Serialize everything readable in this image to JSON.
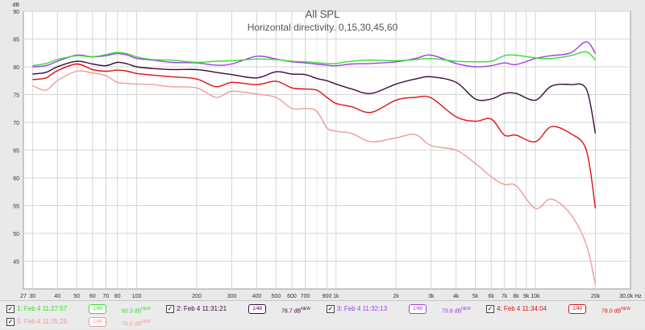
{
  "chart_data": {
    "type": "line",
    "title": "All SPL",
    "subtitle": "Horizontal directivity. 0,15,30,45,60",
    "ylabel": "dB",
    "xunit": "Hz",
    "xscale": "log",
    "xlim": [
      27,
      30000
    ],
    "ylim": [
      40,
      90
    ],
    "grid": true,
    "x_ticks": [
      {
        "v": 27,
        "label": "27"
      },
      {
        "v": 30,
        "label": "30"
      },
      {
        "v": 40,
        "label": "40"
      },
      {
        "v": 50,
        "label": "50"
      },
      {
        "v": 60,
        "label": "60"
      },
      {
        "v": 70,
        "label": "70"
      },
      {
        "v": 80,
        "label": "80"
      },
      {
        "v": 100,
        "label": "100"
      },
      {
        "v": 200,
        "label": "200"
      },
      {
        "v": 300,
        "label": "300"
      },
      {
        "v": 400,
        "label": "400"
      },
      {
        "v": 500,
        "label": "500"
      },
      {
        "v": 600,
        "label": "600"
      },
      {
        "v": 700,
        "label": "700"
      },
      {
        "v": 900,
        "label": "900"
      },
      {
        "v": 1000,
        "label": "1k"
      },
      {
        "v": 2000,
        "label": "2k"
      },
      {
        "v": 3000,
        "label": "3k"
      },
      {
        "v": 4000,
        "label": "4k"
      },
      {
        "v": 5000,
        "label": "5k"
      },
      {
        "v": 6000,
        "label": "6k"
      },
      {
        "v": 7000,
        "label": "7k"
      },
      {
        "v": 8000,
        "label": "8k"
      },
      {
        "v": 9000,
        "label": "9k"
      },
      {
        "v": 10000,
        "label": "10k"
      },
      {
        "v": 20000,
        "label": "20k"
      },
      {
        "v": 30000,
        "label": "30.0k Hz"
      }
    ],
    "y_ticks": [
      45,
      50,
      55,
      60,
      65,
      70,
      75,
      80,
      85,
      90
    ],
    "series": [
      {
        "name": "1: Feb 4 11:27:57",
        "color": "#33dd33",
        "value_label": "80.3 dB",
        "badge": "NEW",
        "x": [
          30,
          35,
          40,
          50,
          60,
          70,
          80,
          90,
          100,
          120,
          150,
          200,
          250,
          300,
          400,
          500,
          600,
          700,
          900,
          1000,
          1200,
          1500,
          2000,
          2500,
          3000,
          4000,
          5000,
          6000,
          7000,
          8000,
          10000,
          12000,
          15000,
          18000,
          20000
        ],
        "y": [
          80.2,
          80.6,
          81.3,
          82.0,
          81.8,
          82.2,
          82.6,
          82.3,
          81.8,
          81.3,
          81.2,
          80.8,
          81.0,
          81.1,
          81.4,
          81.3,
          81.0,
          80.9,
          80.6,
          80.6,
          81.0,
          81.2,
          81.1,
          81.3,
          81.5,
          81.0,
          80.9,
          81.0,
          82.0,
          82.1,
          81.6,
          81.5,
          82.0,
          82.7,
          81.2
        ]
      },
      {
        "name": "2: Feb 4 11:31:21",
        "color": "#3a0c3a",
        "value_label": "78.7 dB",
        "badge": "NEW",
        "x": [
          30,
          35,
          40,
          50,
          60,
          70,
          80,
          90,
          100,
          120,
          150,
          200,
          250,
          300,
          400,
          500,
          600,
          700,
          800,
          900,
          1000,
          1200,
          1500,
          2000,
          2500,
          3000,
          4000,
          5000,
          6000,
          7000,
          8000,
          10000,
          12000,
          15000,
          18000,
          20000
        ],
        "y": [
          78.7,
          79.0,
          80.0,
          81.0,
          80.5,
          80.2,
          80.8,
          80.5,
          80.0,
          79.7,
          79.5,
          79.5,
          79.0,
          78.6,
          78.0,
          79.1,
          78.7,
          78.6,
          77.9,
          77.5,
          76.9,
          76.0,
          75.2,
          76.9,
          77.8,
          78.2,
          77.2,
          74.2,
          74.2,
          75.2,
          75.2,
          74.0,
          76.5,
          76.8,
          76.0,
          68.0
        ]
      },
      {
        "name": "3: Feb 4 11:32:13",
        "color": "#9f3fe8",
        "value_label": "79.8 dB",
        "badge": "NEW",
        "x": [
          30,
          35,
          40,
          50,
          60,
          70,
          80,
          90,
          100,
          120,
          150,
          200,
          250,
          300,
          400,
          500,
          600,
          700,
          900,
          1000,
          1200,
          1500,
          2000,
          2500,
          3000,
          4000,
          5000,
          6000,
          7000,
          8000,
          10000,
          12000,
          15000,
          18000,
          20000
        ],
        "y": [
          80.0,
          80.2,
          81.0,
          82.1,
          81.8,
          82.0,
          82.4,
          82.1,
          81.5,
          81.2,
          80.8,
          80.7,
          80.3,
          80.5,
          81.9,
          81.4,
          80.9,
          80.7,
          80.3,
          80.2,
          80.5,
          80.6,
          80.9,
          81.5,
          82.1,
          80.6,
          80.0,
          80.2,
          80.7,
          80.4,
          81.5,
          82.0,
          82.5,
          84.5,
          82.4
        ]
      },
      {
        "name": "4: Feb 4 11:34:04",
        "color": "#e01010",
        "value_label": "78.0 dB",
        "badge": "NEW",
        "x": [
          30,
          35,
          40,
          50,
          60,
          70,
          80,
          90,
          100,
          120,
          150,
          200,
          250,
          300,
          400,
          500,
          600,
          700,
          800,
          900,
          1000,
          1200,
          1500,
          2000,
          2500,
          3000,
          4000,
          5000,
          6000,
          7000,
          8000,
          10000,
          12000,
          15000,
          18000,
          20000
        ],
        "y": [
          77.7,
          78.0,
          79.3,
          80.5,
          79.5,
          79.2,
          79.4,
          79.2,
          78.8,
          78.5,
          78.2,
          77.8,
          76.4,
          77.2,
          76.8,
          77.4,
          76.2,
          76.0,
          75.8,
          74.5,
          73.4,
          72.8,
          71.8,
          74.0,
          74.5,
          74.4,
          71.0,
          70.2,
          70.6,
          67.7,
          67.7,
          66.5,
          69.2,
          68.0,
          65.0,
          54.5
        ]
      },
      {
        "name": "5: Feb 4 11:35:29",
        "color": "#f09a9a",
        "value_label": "76.6 dB",
        "badge": "NEW",
        "x": [
          30,
          35,
          40,
          50,
          60,
          70,
          80,
          90,
          100,
          120,
          150,
          200,
          250,
          300,
          400,
          500,
          600,
          700,
          800,
          900,
          1000,
          1200,
          1500,
          2000,
          2500,
          3000,
          4000,
          5000,
          6000,
          7000,
          8000,
          10000,
          12000,
          15000,
          18000,
          20000
        ],
        "y": [
          76.6,
          75.8,
          77.5,
          79.2,
          78.9,
          78.4,
          77.2,
          77.0,
          76.9,
          76.8,
          76.4,
          76.2,
          74.5,
          75.6,
          75.1,
          74.5,
          72.5,
          72.5,
          72.0,
          69.0,
          68.4,
          68.0,
          66.5,
          67.2,
          67.8,
          65.8,
          65.0,
          62.6,
          60.2,
          58.8,
          58.6,
          54.5,
          56.2,
          53.5,
          48.0,
          40.8
        ]
      }
    ]
  }
}
